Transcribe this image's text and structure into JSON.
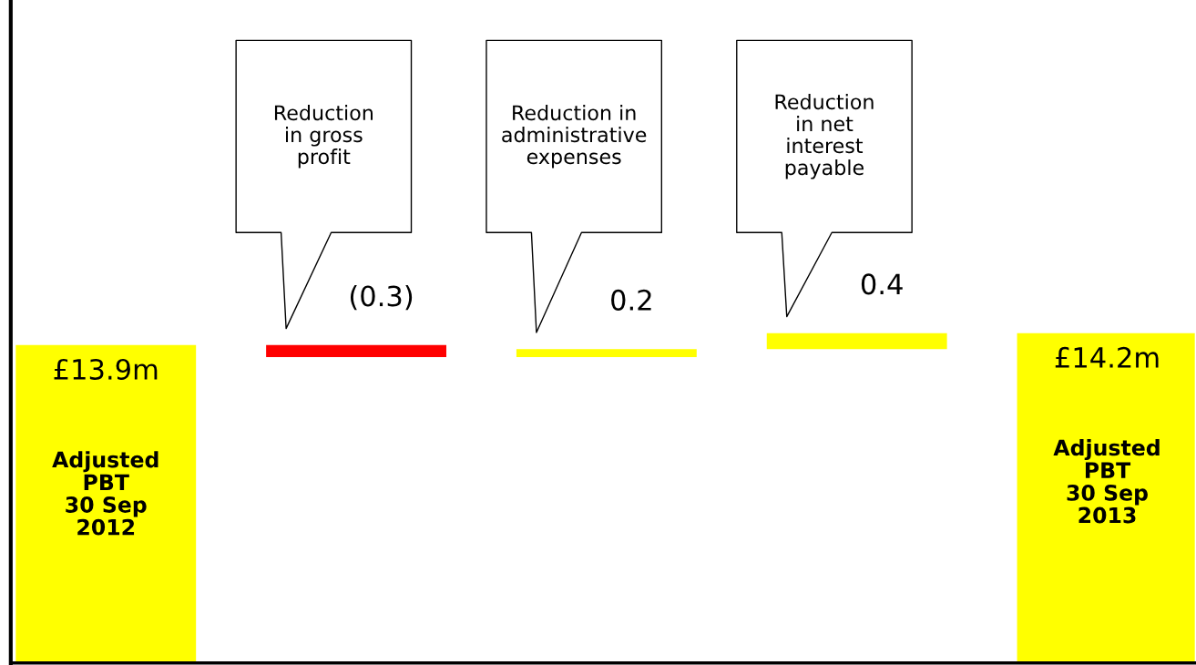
{
  "chart_data": {
    "type": "other",
    "categories": [
      "Adjusted\nPBT\n30 Sep\n2012",
      "Reduction\nin gross\nprofit",
      "Reduction in\nadministrative\nexpenses",
      "Reduction\nin net\ninterest\npayable",
      "Adjusted\nPBT\n30 Sep\n2013"
    ],
    "values": [
      13.9,
      -0.3,
      0.2,
      0.4,
      14.2
    ],
    "colors": [
      "#ffff00",
      "#ff0000",
      "#ffff00",
      "#ffff00",
      "#ffff00"
    ],
    "value_labels": [
      "£13.9m",
      "(0.3)",
      "0.2",
      "0.4",
      "£14.2m"
    ]
  }
}
